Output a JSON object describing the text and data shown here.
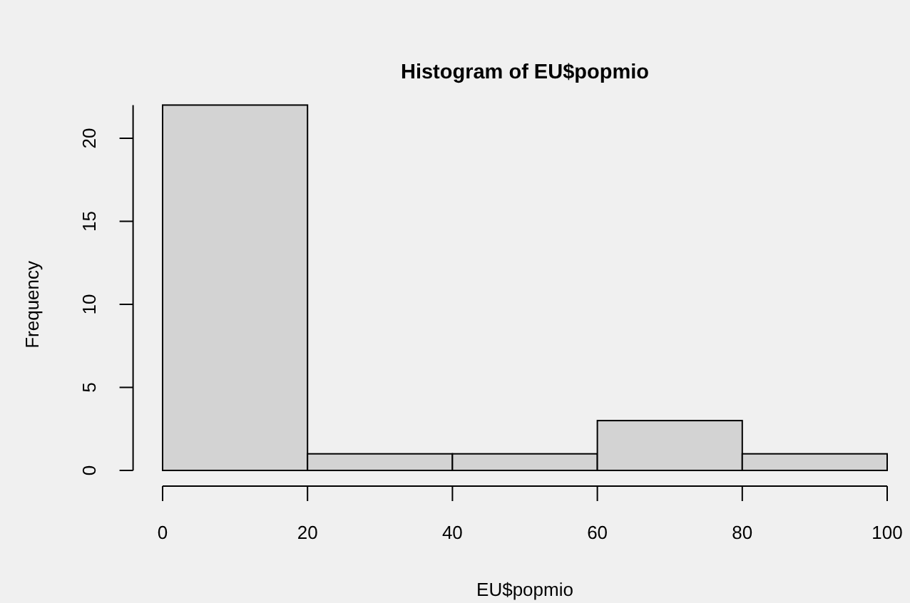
{
  "chart_data": {
    "type": "histogram",
    "title": "Histogram of EU$popmio",
    "xlabel": "EU$popmio",
    "ylabel": "Frequency",
    "bins": [
      0,
      20,
      40,
      60,
      80,
      100
    ],
    "values": [
      22,
      1,
      1,
      3,
      1
    ],
    "color": "#d3d3d3",
    "xlim": [
      0,
      100
    ],
    "ylim": [
      0,
      22
    ],
    "xticks": [
      0,
      20,
      40,
      60,
      80,
      100
    ],
    "yticks": [
      0,
      5,
      10,
      15,
      20
    ]
  }
}
